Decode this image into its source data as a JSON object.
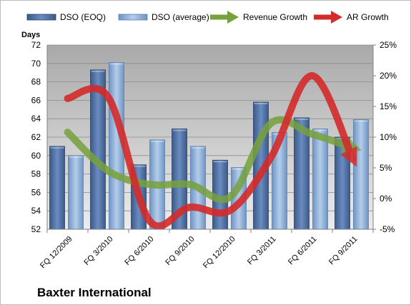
{
  "chart_data": {
    "type": "bar",
    "company": "Baxter International",
    "ylabel_left": "Days",
    "categories": [
      "FQ 12/2009",
      "FQ 3/2010",
      "FQ 6/2010",
      "FQ 9/2010",
      "FQ 12/2010",
      "FQ 3/2011",
      "FQ 6/2011",
      "FQ 9/2011"
    ],
    "series": [
      {
        "name": "DSO (EOQ)",
        "kind": "bar",
        "axis": "left",
        "color": "#4a6b9e",
        "values": [
          61.0,
          69.3,
          59.0,
          62.9,
          59.5,
          65.8,
          64.1,
          62.0
        ]
      },
      {
        "name": "DSO (average)",
        "kind": "bar",
        "axis": "left",
        "color": "#8fb3dc",
        "values": [
          60.0,
          70.1,
          61.7,
          61.0,
          58.7,
          62.5,
          62.9,
          63.9
        ]
      },
      {
        "name": "Revenue Growth",
        "kind": "line",
        "axis": "right",
        "color": "#77a13c",
        "values": [
          10.8,
          4.5,
          2.3,
          2.3,
          0.3,
          12.3,
          10.5,
          8.3
        ]
      },
      {
        "name": "AR Growth",
        "kind": "line",
        "axis": "right",
        "color": "#d42b2b",
        "values": [
          16.3,
          16.5,
          -3.5,
          -1.4,
          -1.9,
          6.8,
          20.0,
          6.5
        ]
      }
    ],
    "y_left": {
      "min": 52,
      "max": 72,
      "ticks": [
        "52",
        "54",
        "56",
        "58",
        "60",
        "62",
        "64",
        "66",
        "68",
        "70",
        "72"
      ]
    },
    "y_right": {
      "min": -5,
      "max": 25,
      "ticks": [
        "-5%",
        "0%",
        "5%",
        "10%",
        "15%",
        "20%",
        "25%"
      ]
    },
    "grid": true,
    "legend_position": "top"
  }
}
